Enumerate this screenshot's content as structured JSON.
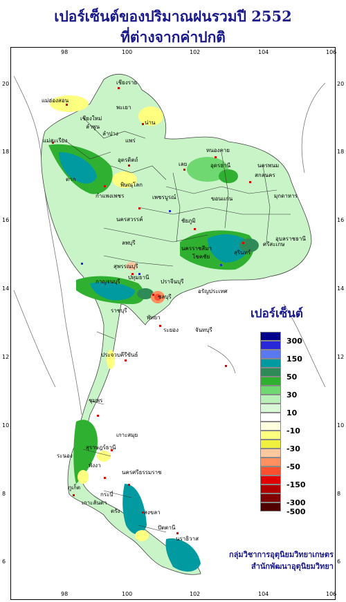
{
  "title_line1": "เปอร์เซ็นต์ของปริมาณฝนรวมปี 2552",
  "title_line2": "ที่ต่างจากค่าปกติ",
  "lon_ticks": [
    "98",
    "100",
    "102",
    "104",
    "106"
  ],
  "lat_ticks": [
    "20",
    "18",
    "16",
    "14",
    "12",
    "10",
    "8",
    "6"
  ],
  "legend": {
    "title": "เปอร์เซ็นต์",
    "classes": [
      {
        "label": "300",
        "color": "#00008b"
      },
      {
        "label": "",
        "color": "#2828d8"
      },
      {
        "label": "150",
        "color": "#5a78f0"
      },
      {
        "label": "",
        "color": "#009aa0"
      },
      {
        "label": "50",
        "color": "#2e8b57"
      },
      {
        "label": "",
        "color": "#30b030"
      },
      {
        "label": "30",
        "color": "#70d870"
      },
      {
        "label": "",
        "color": "#b8f0b8"
      },
      {
        "label": "10",
        "color": "#d8f8d8"
      },
      {
        "label": "",
        "color": "#ffffff"
      },
      {
        "label": "-10",
        "color": "#ffffe0"
      },
      {
        "label": "",
        "color": "#ffff80"
      },
      {
        "label": "-30",
        "color": "#f0f040"
      },
      {
        "label": "",
        "color": "#ffc8a0"
      },
      {
        "label": "-50",
        "color": "#ff9060"
      },
      {
        "label": "",
        "color": "#ff5030"
      },
      {
        "label": "-150",
        "color": "#e00000"
      },
      {
        "label": "",
        "color": "#b00000"
      },
      {
        "label": "-300",
        "color": "#800000"
      },
      {
        "label": "-500",
        "color": "#500000"
      }
    ]
  },
  "credit_line1": "กลุ่มวิชาการอุตุนิยมวิทยาเกษตร",
  "credit_line2": "สำนักพัฒนาอุตุนิยมวิทยา",
  "places": [
    {
      "name": "เชียงราย"
    },
    {
      "name": "แม่ฮ่องสอน"
    },
    {
      "name": "เชียงใหม่"
    },
    {
      "name": "ลำพูน"
    },
    {
      "name": "พะเยา"
    },
    {
      "name": "น่าน"
    },
    {
      "name": "ลำปาง"
    },
    {
      "name": "แพร่"
    },
    {
      "name": "แม่สะเรียง"
    },
    {
      "name": "หนองคาย"
    },
    {
      "name": "อุดรธานี"
    },
    {
      "name": "นครพนม"
    },
    {
      "name": "เลย"
    },
    {
      "name": "สกลนคร"
    },
    {
      "name": "อุตรดิตถ์"
    },
    {
      "name": "ตาก"
    },
    {
      "name": "พิษณุโลก"
    },
    {
      "name": "มุกดาหาร"
    },
    {
      "name": "กำแพงเพชร"
    },
    {
      "name": "เพชรบูรณ์"
    },
    {
      "name": "ขอนแก่น"
    },
    {
      "name": "นครสวรรค์"
    },
    {
      "name": "ชัยภูมิ"
    },
    {
      "name": "อุบลราชธานี"
    },
    {
      "name": "ลพบุรี"
    },
    {
      "name": "นครราชสีมา"
    },
    {
      "name": "สุรินทร์"
    },
    {
      "name": "สุพรรณบุรี"
    },
    {
      "name": "ศรีสะเกษ"
    },
    {
      "name": "โชคชัย"
    },
    {
      "name": "กาญจนบุรี"
    },
    {
      "name": "ปทุมธานี"
    },
    {
      "name": "ปราจีนบุรี"
    },
    {
      "name": "อรัญประเทศ"
    },
    {
      "name": "ราชบุรี"
    },
    {
      "name": "ชลบุรี"
    },
    {
      "name": "พัทยา"
    },
    {
      "name": "ระยอง"
    },
    {
      "name": "จันทบุรี"
    },
    {
      "name": "ประจวบคีรีขันธ์"
    },
    {
      "name": "ชุมพร"
    },
    {
      "name": "เกาะสมุย"
    },
    {
      "name": "สุราษฎร์ธานี"
    },
    {
      "name": "ระนอง"
    },
    {
      "name": "พังงา"
    },
    {
      "name": "นครศรีธรรมราช"
    },
    {
      "name": "ภูเก็ต"
    },
    {
      "name": "กระบี่"
    },
    {
      "name": "ตรัง"
    },
    {
      "name": "สงขลา"
    },
    {
      "name": "เกาะลันตา"
    },
    {
      "name": "ปัตตานี"
    },
    {
      "name": "นราธิวาส"
    }
  ]
}
